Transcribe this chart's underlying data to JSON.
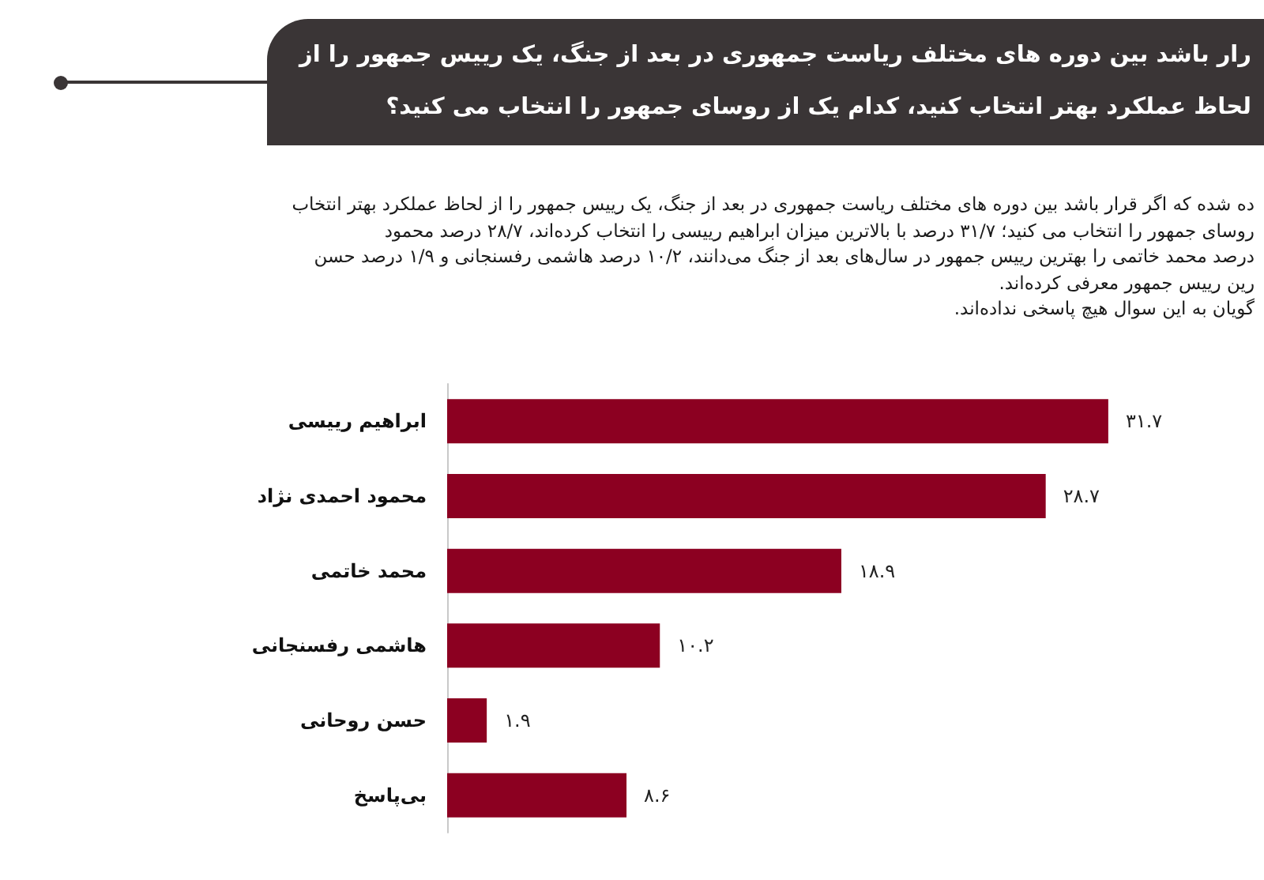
{
  "chart_data": {
    "type": "bar",
    "orientation": "horizontal",
    "title": "رار باشد بین دوره های مختلف ریاست جمهوری در بعد از جنگ، یک رییس جمهور را از\nلحاظ عملکرد بهتر انتخاب کنید، کدام یک از روسای جمهور را انتخاب می کنید؟",
    "subtitle": "ده شده که اگر قرار باشد بین دوره های مختلف ریاست جمهوری در بعد از جنگ، یک رییس جمهور را از لحاظ عملکرد بهتر انتخاب\nروسای جمهور را انتخاب می کنید؛ ۳۱/۷ درصد با بالاترین میزان ابراهیم رییسی را انتخاب کرده‌اند، ۲۸/۷ درصد محمود\nدرصد محمد خاتمی را بهترین رییس جمهور در سال‌های بعد از جنگ می‌دانند، ۱۰/۲ درصد هاشمی رفسنجانی و ۱/۹ درصد حسن\nرین رییس جمهور معرفی کرده‌اند.\nگویان به این سوال هیچ پاسخی نداده‌اند.",
    "categories": [
      "ابراهیم رییسی",
      "محمود احمدی نژاد",
      "محمد خاتمی",
      "هاشمی رفسنجانی",
      "حسن روحانی",
      "بی‌پاسخ"
    ],
    "values": [
      31.7,
      28.7,
      18.9,
      10.2,
      1.9,
      8.6
    ],
    "color": "#8c0021",
    "value_labels": [
      "۳۱.۷",
      "۲۸.۷",
      "۱۸.۹",
      "۱۰.۲",
      "۱.۹",
      "۸.۶"
    ]
  }
}
